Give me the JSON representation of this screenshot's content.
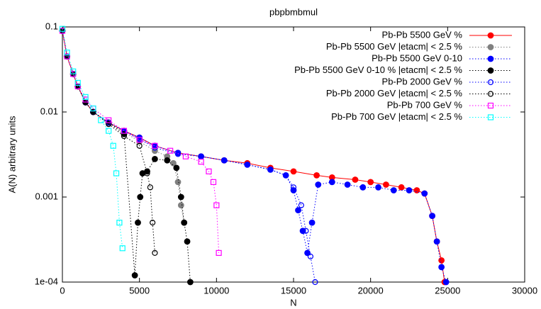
{
  "chart_data": {
    "type": "scatter",
    "title": "pbpbmbmul",
    "x_label": "N",
    "y_label": "A(N) arbitrary units",
    "log_y": true,
    "legend": "upper right",
    "xlim": [
      0,
      30000
    ],
    "xticks": [
      0,
      5000,
      10000,
      15000,
      20000,
      25000,
      30000
    ],
    "ylim": [
      0.0001,
      0.1
    ],
    "yticks": [
      0.1,
      0.01,
      0.001,
      {
        "value": 0.0001,
        "label": "1e-04"
      }
    ],
    "series": [
      {
        "name": "Pb-Pb 5500 GeV  %",
        "color": "#ff0000",
        "marker": "circle-filled",
        "line": "solid",
        "x": [
          0,
          300,
          700,
          1000,
          1500,
          2000,
          3000,
          4000,
          5000,
          6000,
          7500,
          9000,
          10500,
          12000,
          13500,
          15000,
          16500,
          17500,
          19000,
          20000,
          21000,
          22000,
          23000,
          23500,
          24000,
          24300,
          24600,
          24800
        ],
        "values": [
          0.09,
          0.045,
          0.028,
          0.02,
          0.013,
          0.01,
          0.0075,
          0.006,
          0.005,
          0.004,
          0.0033,
          0.003,
          0.0027,
          0.0025,
          0.0022,
          0.002,
          0.0018,
          0.0017,
          0.0016,
          0.0015,
          0.0014,
          0.0013,
          0.0012,
          0.0011,
          0.0006,
          0.0003,
          0.00018,
          0.0001
        ]
      },
      {
        "name": "Pb-Pb 5500 GeV |etacm| < 2.5 %",
        "color": "#808080",
        "marker": "circle-filled",
        "line": "dotted",
        "x": [
          0,
          300,
          700,
          1000,
          1500,
          2000,
          3000,
          4000,
          5000,
          6000,
          6800,
          7200,
          7500,
          7700,
          7900
        ],
        "values": [
          0.09,
          0.045,
          0.028,
          0.02,
          0.013,
          0.01,
          0.0075,
          0.0058,
          0.0045,
          0.0035,
          0.003,
          0.0025,
          0.0015,
          0.0008,
          0.0005
        ]
      },
      {
        "name": "Pb-Pb 5500 GeV 0-10",
        "color": "#0000ff",
        "marker": "circle-filled",
        "line": "dotted",
        "x": [
          0,
          300,
          700,
          1000,
          1500,
          2000,
          3000,
          4000,
          5000,
          6000,
          7500,
          9000,
          10500,
          12000,
          13500,
          14500,
          15000,
          15300,
          15600,
          15900,
          16200,
          16600,
          17500,
          18500,
          19500,
          20500,
          21500,
          22500,
          23500,
          24000,
          24300,
          24600,
          24900
        ],
        "values": [
          0.09,
          0.045,
          0.028,
          0.02,
          0.013,
          0.01,
          0.0075,
          0.006,
          0.005,
          0.004,
          0.0033,
          0.003,
          0.0027,
          0.0024,
          0.0021,
          0.0018,
          0.0012,
          0.0007,
          0.0004,
          0.00022,
          0.0005,
          0.0014,
          0.0015,
          0.0014,
          0.0013,
          0.0013,
          0.0012,
          0.0012,
          0.0011,
          0.0006,
          0.0003,
          0.00015,
          0.0001
        ]
      },
      {
        "name": "Pb-Pb 5500 GeV 0-10 %  |etacm| < 2.5 %",
        "color": "#000000",
        "marker": "circle-filled",
        "line": "dotted",
        "x": [
          0,
          300,
          700,
          1000,
          1500,
          2000,
          3000,
          4000,
          4700,
          4900,
          5050,
          5200,
          5500,
          6000,
          6800,
          7400,
          7700,
          7900,
          8100,
          8300
        ],
        "values": [
          0.09,
          0.045,
          0.028,
          0.02,
          0.013,
          0.01,
          0.0075,
          0.0055,
          0.00012,
          0.0005,
          0.001,
          0.0019,
          0.002,
          0.0028,
          0.0027,
          0.0022,
          0.001,
          0.0005,
          0.0003,
          0.0001
        ]
      },
      {
        "name": "Pb-Pb 2000 GeV  %",
        "color": "#0000ff",
        "marker": "circle-open",
        "line": "dotted",
        "x": [
          0,
          300,
          700,
          1000,
          1500,
          2000,
          3000,
          4000,
          5000,
          6000,
          7500,
          9000,
          10500,
          12000,
          13500,
          14500,
          15000,
          15500,
          15800,
          16100,
          16400
        ],
        "values": [
          0.09,
          0.045,
          0.028,
          0.02,
          0.013,
          0.01,
          0.0075,
          0.006,
          0.0048,
          0.0038,
          0.0032,
          0.003,
          0.0027,
          0.0024,
          0.0021,
          0.0018,
          0.0013,
          0.0008,
          0.0004,
          0.0002,
          0.0001
        ]
      },
      {
        "name": "Pb-Pb 2000 GeV |etacm| < 2.5 %",
        "color": "#000000",
        "marker": "circle-open",
        "line": "dotted",
        "x": [
          0,
          300,
          700,
          1000,
          1500,
          2000,
          3000,
          4000,
          5000,
          5500,
          5700,
          5850,
          6000
        ],
        "values": [
          0.09,
          0.045,
          0.028,
          0.02,
          0.013,
          0.01,
          0.0072,
          0.0052,
          0.004,
          0.0019,
          0.0013,
          0.0005,
          0.00022
        ]
      },
      {
        "name": "Pb-Pb 700 GeV  %",
        "color": "#ff00ff",
        "marker": "square-open",
        "line": "dotted",
        "x": [
          0,
          300,
          700,
          1000,
          1500,
          2000,
          3000,
          4000,
          5000,
          6000,
          7000,
          8000,
          9000,
          9500,
          9800,
          10000,
          10150
        ],
        "values": [
          0.09,
          0.045,
          0.028,
          0.02,
          0.014,
          0.011,
          0.008,
          0.006,
          0.0047,
          0.004,
          0.0035,
          0.003,
          0.0026,
          0.002,
          0.0015,
          0.0008,
          0.00022
        ]
      },
      {
        "name": "Pb-Pb 700 GeV |etacm| < 2.5 %",
        "color": "#00ffff",
        "marker": "square-open",
        "line": "dotted",
        "x": [
          0,
          300,
          700,
          1000,
          1500,
          2000,
          2500,
          3000,
          3300,
          3500,
          3700,
          3900
        ],
        "values": [
          0.095,
          0.05,
          0.03,
          0.022,
          0.015,
          0.011,
          0.008,
          0.006,
          0.004,
          0.0019,
          0.0005,
          0.00025
        ]
      }
    ]
  }
}
